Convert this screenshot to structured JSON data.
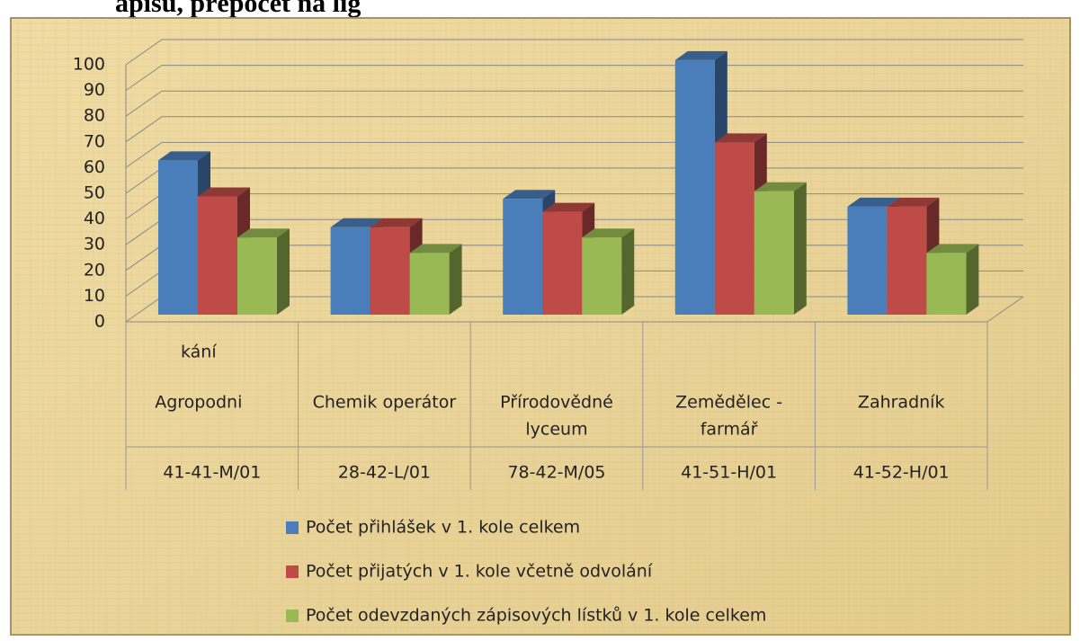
{
  "chart_data": {
    "type": "bar3d",
    "title": "ápisů, přepočet na lig",
    "categories": [
      [
        "kání",
        "Agropodni"
      ],
      [
        "Chemik operátor"
      ],
      [
        "Přírodovědné",
        "lyceum"
      ],
      [
        "Zemědělec -",
        "farmář"
      ],
      [
        "Zahradník"
      ]
    ],
    "codes": [
      "41-41-M/01",
      "28-42-L/01",
      "78-42-M/05",
      "41-51-H/01",
      "41-52-H/01"
    ],
    "series": [
      {
        "name": "Počet přihlášek v 1. kole celkem",
        "color": "#4a7ebb",
        "values": [
          60,
          34,
          45,
          99,
          42
        ]
      },
      {
        "name": "Počet přijatých v 1. kole včetně odvolání",
        "color": "#be4b48",
        "values": [
          46,
          34,
          40,
          67,
          42
        ]
      },
      {
        "name": "Počet odevzdaných zápisových lístků v 1. kole celkem",
        "color": "#98b954",
        "values": [
          30,
          24,
          30,
          48,
          24
        ]
      }
    ],
    "ylim": [
      0,
      100
    ],
    "yticks": [
      0,
      10,
      20,
      30,
      40,
      50,
      60,
      70,
      80,
      90,
      100
    ],
    "grid": true
  }
}
